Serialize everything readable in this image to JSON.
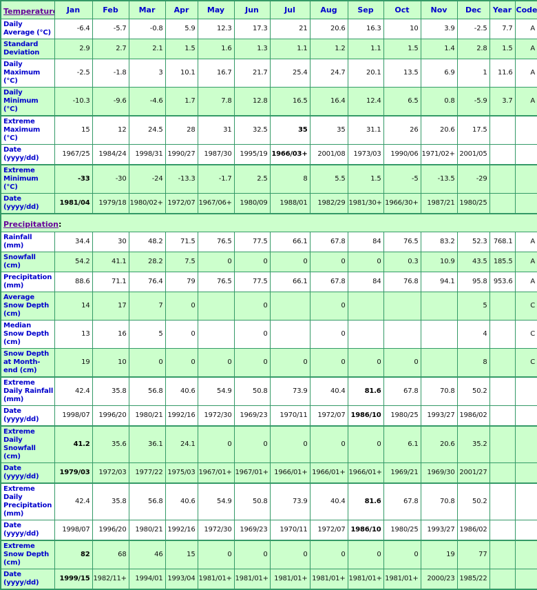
{
  "colors": {
    "border": "#339966",
    "row_green": "#ccffcc",
    "row_white": "#ffffff",
    "header_blue": "#0000cc",
    "link_purple": "#660099"
  },
  "header": {
    "months": [
      "Jan",
      "Feb",
      "Mar",
      "Apr",
      "May",
      "Jun",
      "Jul",
      "Aug",
      "Sep",
      "Oct",
      "Nov",
      "Dec"
    ],
    "year_label": "Year",
    "code_label": "Code"
  },
  "sections": [
    {
      "title": "Temperature",
      "title_suffix": ":",
      "in_header_row": true,
      "rows": [
        {
          "label": "Daily Average (°C)",
          "bg": "white",
          "thick": false,
          "bold_col": -1,
          "cells": [
            "-6.4",
            "-5.7",
            "-0.8",
            "5.9",
            "12.3",
            "17.3",
            "21",
            "20.6",
            "16.3",
            "10",
            "3.9",
            "-2.5"
          ],
          "year": "7.7",
          "code": "A"
        },
        {
          "label": "Standard Deviation",
          "bg": "green",
          "thick": false,
          "bold_col": -1,
          "cells": [
            "2.9",
            "2.7",
            "2.1",
            "1.5",
            "1.6",
            "1.3",
            "1.1",
            "1.2",
            "1.1",
            "1.5",
            "1.4",
            "2.8"
          ],
          "year": "1.5",
          "code": "A"
        },
        {
          "label": "Daily Maximum (°C)",
          "bg": "white",
          "thick": false,
          "bold_col": -1,
          "cells": [
            "-2.5",
            "-1.8",
            "3",
            "10.1",
            "16.7",
            "21.7",
            "25.4",
            "24.7",
            "20.1",
            "13.5",
            "6.9",
            "1"
          ],
          "year": "11.6",
          "code": "A"
        },
        {
          "label": "Daily Minimum (°C)",
          "bg": "green",
          "thick": false,
          "bold_col": -1,
          "cells": [
            "-10.3",
            "-9.6",
            "-4.6",
            "1.7",
            "7.8",
            "12.8",
            "16.5",
            "16.4",
            "12.4",
            "6.5",
            "0.8",
            "-5.9"
          ],
          "year": "3.7",
          "code": "A"
        },
        {
          "label": "Extreme Maximum (°C)",
          "bg": "white",
          "thick": true,
          "bold_col": 6,
          "cells": [
            "15",
            "12",
            "24.5",
            "28",
            "31",
            "32.5",
            "35",
            "35",
            "31.1",
            "26",
            "20.6",
            "17.5"
          ],
          "year": "",
          "code": ""
        },
        {
          "label": "Date (yyyy/dd)",
          "bg": "white",
          "thick": false,
          "bold_col": 6,
          "cells": [
            "1967/25",
            "1984/24",
            "1998/31",
            "1990/27",
            "1987/30",
            "1995/19",
            "1966/03+",
            "2001/08",
            "1973/03",
            "1990/06",
            "1971/02+",
            "2001/05"
          ],
          "year": "",
          "code": ""
        },
        {
          "label": "Extreme Minimum (°C)",
          "bg": "green",
          "thick": true,
          "bold_col": 0,
          "cells": [
            "-33",
            "-30",
            "-24",
            "-13.3",
            "-1.7",
            "2.5",
            "8",
            "5.5",
            "1.5",
            "-5",
            "-13.5",
            "-29"
          ],
          "year": "",
          "code": ""
        },
        {
          "label": "Date (yyyy/dd)",
          "bg": "green",
          "thick": false,
          "bold_col": 0,
          "cells": [
            "1981/04",
            "1979/18",
            "1980/02+",
            "1972/07",
            "1967/06+",
            "1980/09",
            "1988/01",
            "1982/29",
            "1981/30+",
            "1966/30+",
            "1987/21",
            "1980/25"
          ],
          "year": "",
          "code": ""
        }
      ]
    },
    {
      "title": "Precipitation",
      "title_suffix": ":",
      "in_header_row": false,
      "rows": [
        {
          "label": "Rainfall (mm)",
          "bg": "white",
          "thick": false,
          "bold_col": -1,
          "cells": [
            "34.4",
            "30",
            "48.2",
            "71.5",
            "76.5",
            "77.5",
            "66.1",
            "67.8",
            "84",
            "76.5",
            "83.2",
            "52.3"
          ],
          "year": "768.1",
          "code": "A"
        },
        {
          "label": "Snowfall (cm)",
          "bg": "green",
          "thick": false,
          "bold_col": -1,
          "cells": [
            "54.2",
            "41.1",
            "28.2",
            "7.5",
            "0",
            "0",
            "0",
            "0",
            "0",
            "0.3",
            "10.9",
            "43.5"
          ],
          "year": "185.5",
          "code": "A"
        },
        {
          "label": "Precipitation (mm)",
          "bg": "white",
          "thick": false,
          "bold_col": -1,
          "cells": [
            "88.6",
            "71.1",
            "76.4",
            "79",
            "76.5",
            "77.5",
            "66.1",
            "67.8",
            "84",
            "76.8",
            "94.1",
            "95.8"
          ],
          "year": "953.6",
          "code": "A"
        },
        {
          "label": "Average Snow Depth (cm)",
          "bg": "green",
          "thick": false,
          "bold_col": -1,
          "cells": [
            "14",
            "17",
            "7",
            "0",
            "",
            "0",
            "",
            "0",
            "",
            "",
            "",
            "5"
          ],
          "year": "",
          "code": "C"
        },
        {
          "label": "Median Snow Depth (cm)",
          "bg": "white",
          "thick": false,
          "bold_col": -1,
          "cells": [
            "13",
            "16",
            "5",
            "0",
            "",
            "0",
            "",
            "0",
            "",
            "",
            "",
            "4"
          ],
          "year": "",
          "code": "C"
        },
        {
          "label": "Snow Depth at Month-end (cm)",
          "bg": "green",
          "thick": false,
          "bold_col": -1,
          "cells": [
            "19",
            "10",
            "0",
            "0",
            "0",
            "0",
            "0",
            "0",
            "0",
            "0",
            "",
            "8"
          ],
          "year": "",
          "code": "C"
        },
        {
          "label": "Extreme Daily Rainfall (mm)",
          "bg": "white",
          "thick": true,
          "bold_col": 8,
          "cells": [
            "42.4",
            "35.8",
            "56.8",
            "40.6",
            "54.9",
            "50.8",
            "73.9",
            "40.4",
            "81.6",
            "67.8",
            "70.8",
            "50.2"
          ],
          "year": "",
          "code": ""
        },
        {
          "label": "Date (yyyy/dd)",
          "bg": "white",
          "thick": false,
          "bold_col": 8,
          "cells": [
            "1998/07",
            "1996/20",
            "1980/21",
            "1992/16",
            "1972/30",
            "1969/23",
            "1970/11",
            "1972/07",
            "1986/10",
            "1980/25",
            "1993/27",
            "1986/02"
          ],
          "year": "",
          "code": ""
        },
        {
          "label": "Extreme Daily Snowfall (cm)",
          "bg": "green",
          "thick": true,
          "bold_col": 0,
          "cells": [
            "41.2",
            "35.6",
            "36.1",
            "24.1",
            "0",
            "0",
            "0",
            "0",
            "0",
            "6.1",
            "20.6",
            "35.2"
          ],
          "year": "",
          "code": ""
        },
        {
          "label": "Date (yyyy/dd)",
          "bg": "green",
          "thick": false,
          "bold_col": 0,
          "cells": [
            "1979/03",
            "1972/03",
            "1977/22",
            "1975/03",
            "1967/01+",
            "1967/01+",
            "1966/01+",
            "1966/01+",
            "1966/01+",
            "1969/21",
            "1969/30",
            "2001/27"
          ],
          "year": "",
          "code": ""
        },
        {
          "label": "Extreme Daily Precipitation (mm)",
          "bg": "white",
          "thick": true,
          "bold_col": 8,
          "cells": [
            "42.4",
            "35.8",
            "56.8",
            "40.6",
            "54.9",
            "50.8",
            "73.9",
            "40.4",
            "81.6",
            "67.8",
            "70.8",
            "50.2"
          ],
          "year": "",
          "code": ""
        },
        {
          "label": "Date (yyyy/dd)",
          "bg": "white",
          "thick": false,
          "bold_col": 8,
          "cells": [
            "1998/07",
            "1996/20",
            "1980/21",
            "1992/16",
            "1972/30",
            "1969/23",
            "1970/11",
            "1972/07",
            "1986/10",
            "1980/25",
            "1993/27",
            "1986/02"
          ],
          "year": "",
          "code": ""
        },
        {
          "label": "Extreme Snow Depth (cm)",
          "bg": "green",
          "thick": true,
          "bold_col": 0,
          "cells": [
            "82",
            "68",
            "46",
            "15",
            "0",
            "0",
            "0",
            "0",
            "0",
            "0",
            "19",
            "77"
          ],
          "year": "",
          "code": ""
        },
        {
          "label": "Date (yyyy/dd)",
          "bg": "green",
          "thick": false,
          "bold_col": 0,
          "cells": [
            "1999/15",
            "1982/11+",
            "1994/01",
            "1993/04",
            "1981/01+",
            "1981/01+",
            "1981/01+",
            "1981/01+",
            "1981/01+",
            "1981/01+",
            "2000/23",
            "1985/22"
          ],
          "year": "",
          "code": ""
        }
      ]
    }
  ]
}
